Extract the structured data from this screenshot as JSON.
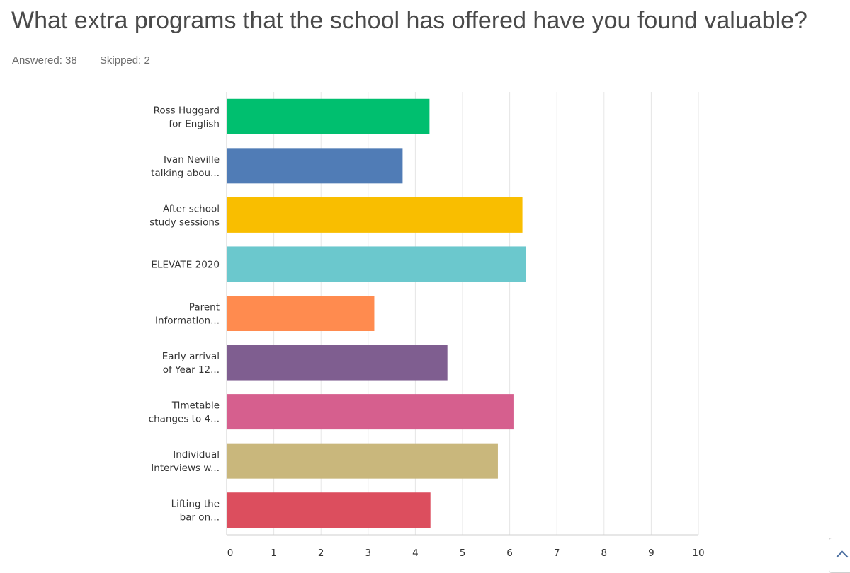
{
  "question": {
    "title": "What extra programs that the school has offered have you found valuable?",
    "answered": "Answered: 38",
    "skipped": "Skipped: 2"
  },
  "chart_data": {
    "type": "bar",
    "orientation": "horizontal",
    "categories": [
      [
        "Ross Huggard",
        "for English"
      ],
      [
        "Ivan Neville",
        "talking abou..."
      ],
      [
        "After school",
        "study sessions"
      ],
      [
        "ELEVATE 2020"
      ],
      [
        "Parent",
        "Information..."
      ],
      [
        "Early arrival",
        "of Year 12..."
      ],
      [
        "Timetable",
        "changes to 4..."
      ],
      [
        "Individual",
        "Interviews w..."
      ],
      [
        "Lifting the",
        "bar on..."
      ]
    ],
    "values": [
      4.3,
      3.73,
      6.27,
      6.35,
      3.13,
      4.68,
      6.08,
      5.75,
      4.32
    ],
    "colors": [
      "#00bf6f",
      "#507cb6",
      "#f9be00",
      "#6bc8cd",
      "#ff8b4f",
      "#7f5e90",
      "#d65f8e",
      "#c9b77c",
      "#dc4e5e"
    ],
    "xlim": [
      0,
      10
    ],
    "xticks": [
      "0",
      "1",
      "2",
      "3",
      "4",
      "5",
      "6",
      "7",
      "8",
      "9",
      "10"
    ],
    "grid": true
  }
}
